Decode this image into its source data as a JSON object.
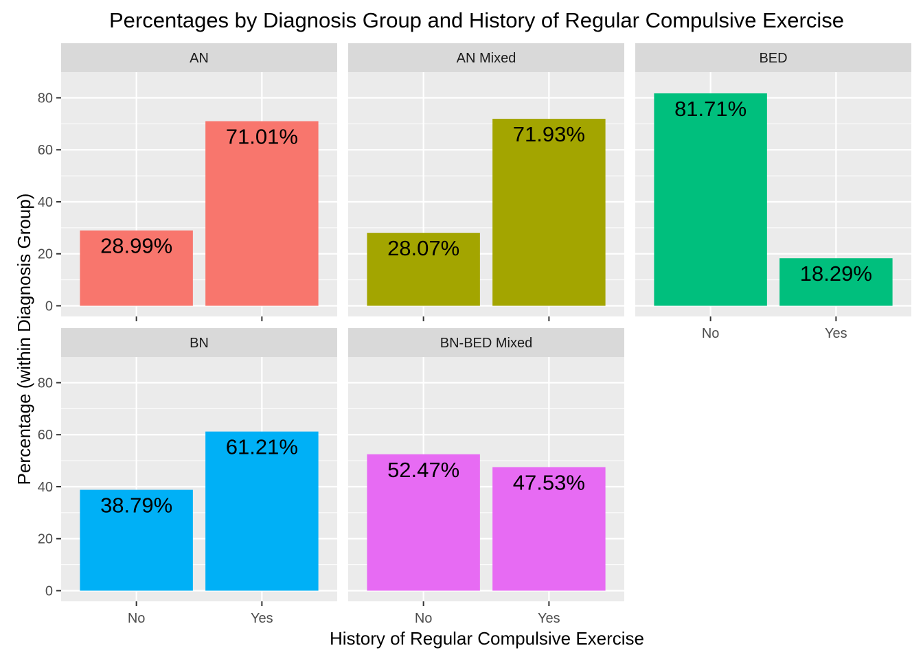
{
  "chart_data": {
    "type": "bar",
    "title": "Percentages by Diagnosis Group and History of Regular Compulsive Exercise",
    "xlabel": "History of Regular Compulsive Exercise",
    "ylabel": "Percentage (within Diagnosis Group)",
    "categories": [
      "No",
      "Yes"
    ],
    "yticks": [
      0,
      20,
      40,
      60,
      80
    ],
    "ylim": [
      -4.1,
      89.9
    ],
    "panels": [
      {
        "name": "AN",
        "color": "#F8766D",
        "values": [
          28.99,
          71.01
        ],
        "labels": [
          "28.99%",
          "71.01%"
        ]
      },
      {
        "name": "AN Mixed",
        "color": "#A3A500",
        "values": [
          28.07,
          71.93
        ],
        "labels": [
          "28.07%",
          "71.93%"
        ]
      },
      {
        "name": "BED",
        "color": "#00BF7D",
        "values": [
          81.71,
          18.29
        ],
        "labels": [
          "81.71%",
          "18.29%"
        ]
      },
      {
        "name": "BN",
        "color": "#00B0F6",
        "values": [
          38.79,
          61.21
        ],
        "labels": [
          "38.79%",
          "61.21%"
        ]
      },
      {
        "name": "BN-BED Mixed",
        "color": "#E76BF3",
        "values": [
          52.47,
          47.53
        ],
        "labels": [
          "52.47%",
          "47.53%"
        ]
      }
    ]
  }
}
